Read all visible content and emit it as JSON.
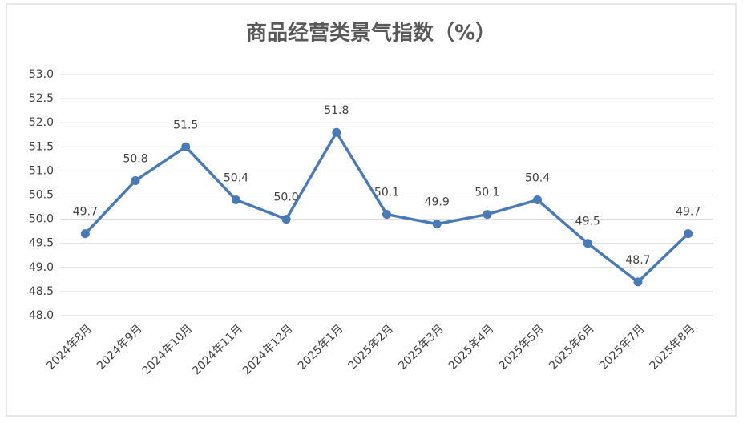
{
  "chart_data": {
    "type": "line",
    "title": "商品经营类景气指数（%）",
    "categories": [
      "2024年8月",
      "2024年9月",
      "2024年10月",
      "2024年11月",
      "2024年12月",
      "2025年1月",
      "2025年2月",
      "2025年3月",
      "2025年4月",
      "2025年5月",
      "2025年6月",
      "2025年7月",
      "2025年8月"
    ],
    "values": [
      49.7,
      50.8,
      51.5,
      50.4,
      50.0,
      51.8,
      50.1,
      49.9,
      50.1,
      50.4,
      49.5,
      48.7,
      49.7
    ],
    "value_labels": [
      "49.7",
      "50.8",
      "51.5",
      "50.4",
      "50.0",
      "51.8",
      "50.1",
      "49.9",
      "50.1",
      "50.4",
      "49.5",
      "48.7",
      "49.7"
    ],
    "color": "#4a7ab5",
    "ylim": [
      48,
      53
    ],
    "yticks": [
      {
        "value": 48,
        "label": "48.0"
      },
      48.5,
      {
        "value": 49,
        "label": "49.0"
      },
      49.5,
      {
        "value": 50,
        "label": "50.0"
      },
      50.5,
      {
        "value": 51,
        "label": "51.0"
      },
      51.5,
      {
        "value": 52,
        "label": "52.0"
      },
      52.5,
      {
        "value": 53,
        "label": "53.0"
      }
    ],
    "grid": true
  }
}
